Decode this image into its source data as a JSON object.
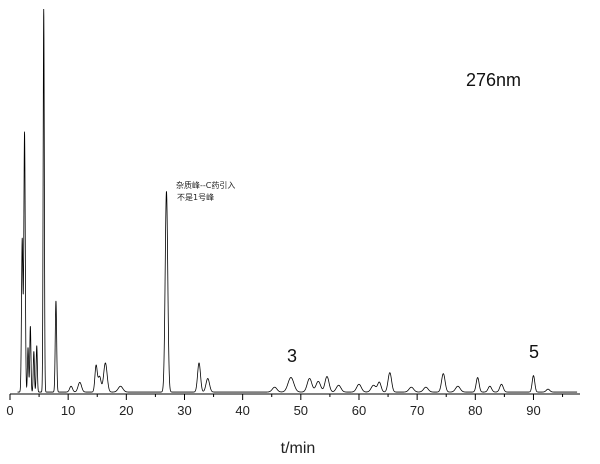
{
  "chart_data": {
    "type": "line",
    "title": "",
    "xlabel": "t/min",
    "ylabel": "",
    "xlim": [
      0,
      98
    ],
    "x_ticks": [
      0,
      10,
      20,
      30,
      40,
      50,
      60,
      70,
      80,
      90
    ],
    "grid": false,
    "legend": "none",
    "annotations": {
      "wavelength": "276nm",
      "impurity_note_line1": "杂质峰--C药引入",
      "impurity_note_line2": "不是1号峰",
      "peak3_label": "3",
      "peak5_label": "5"
    },
    "series": [
      {
        "color": "#000000",
        "baseline": 2,
        "peaks": [
          {
            "t": 2.1,
            "h": 158,
            "w": 0.12
          },
          {
            "t": 2.5,
            "h": 268,
            "w": 0.12
          },
          {
            "t": 3.1,
            "h": 46,
            "w": 0.1
          },
          {
            "t": 3.5,
            "h": 68,
            "w": 0.1
          },
          {
            "t": 4.1,
            "h": 42,
            "w": 0.1
          },
          {
            "t": 4.6,
            "h": 48,
            "w": 0.1
          },
          {
            "t": 5.8,
            "h": 395,
            "w": 0.1
          },
          {
            "t": 7.9,
            "h": 94,
            "w": 0.12
          },
          {
            "t": 10.5,
            "h": 6,
            "w": 0.25
          },
          {
            "t": 12.0,
            "h": 10,
            "w": 0.3
          },
          {
            "t": 14.8,
            "h": 27,
            "w": 0.2
          },
          {
            "t": 15.4,
            "h": 16,
            "w": 0.25
          },
          {
            "t": 16.4,
            "h": 30,
            "w": 0.3
          },
          {
            "t": 19.0,
            "h": 6,
            "w": 0.4
          },
          {
            "t": 26.9,
            "h": 207,
            "w": 0.22
          },
          {
            "t": 32.5,
            "h": 30,
            "w": 0.25
          },
          {
            "t": 34.0,
            "h": 14,
            "w": 0.3
          },
          {
            "t": 45.5,
            "h": 5,
            "w": 0.4
          },
          {
            "t": 48.3,
            "h": 15,
            "w": 0.5
          },
          {
            "t": 51.5,
            "h": 14,
            "w": 0.4
          },
          {
            "t": 53.0,
            "h": 11,
            "w": 0.4
          },
          {
            "t": 54.5,
            "h": 16,
            "w": 0.35
          },
          {
            "t": 56.5,
            "h": 7,
            "w": 0.4
          },
          {
            "t": 60.0,
            "h": 8,
            "w": 0.4
          },
          {
            "t": 62.5,
            "h": 7,
            "w": 0.4
          },
          {
            "t": 63.5,
            "h": 10,
            "w": 0.3
          },
          {
            "t": 65.3,
            "h": 20,
            "w": 0.3
          },
          {
            "t": 69.0,
            "h": 5,
            "w": 0.4
          },
          {
            "t": 71.5,
            "h": 5,
            "w": 0.4
          },
          {
            "t": 74.5,
            "h": 19,
            "w": 0.3
          },
          {
            "t": 77.0,
            "h": 6,
            "w": 0.4
          },
          {
            "t": 80.4,
            "h": 15,
            "w": 0.25
          },
          {
            "t": 82.5,
            "h": 6,
            "w": 0.3
          },
          {
            "t": 84.5,
            "h": 8,
            "w": 0.3
          },
          {
            "t": 90.0,
            "h": 17,
            "w": 0.22
          },
          {
            "t": 92.5,
            "h": 3,
            "w": 0.3
          }
        ]
      }
    ]
  }
}
